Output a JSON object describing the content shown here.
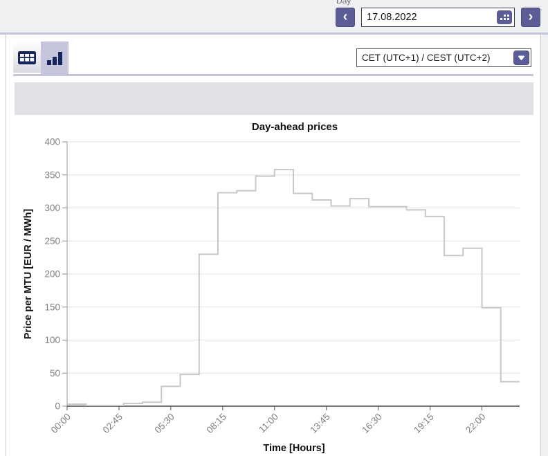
{
  "topbar": {
    "day_label": "Day",
    "date_value": "17.08.2022"
  },
  "icons": {
    "chevron_left": "‹",
    "chevron_right": "›"
  },
  "toolbar": {
    "timezone_value": "CET (UTC+1) / CEST (UTC+2)"
  },
  "colors": {
    "accent_purple": "#5c5c97",
    "icon_navy": "#16265c",
    "selected_button_bg": "#c5c5de",
    "divider_lavender": "#c5c5dc",
    "band_gray": "#e0e0e6",
    "topbar_bg": "#eff0f2",
    "line_gray": "#c8c8c8",
    "grid_gray": "#e3e3e3",
    "tick_label_gray": "#7f7f7f",
    "x_axis_color": "#444444",
    "y_axis_color": "#9a9a9a"
  },
  "chart_data": {
    "type": "line",
    "style": "step-after-hourly",
    "title": "Day-ahead prices",
    "xlabel": "Time [Hours]",
    "ylabel": "Price per MTU [EUR / MWh]",
    "ylim": [
      0,
      400
    ],
    "ytick_step": 50,
    "x_hours_range": [
      0,
      24
    ],
    "xticks": [
      {
        "hour": 0,
        "label": "00:00"
      },
      {
        "hour": 2.75,
        "label": "02:45"
      },
      {
        "hour": 5.5,
        "label": "05:30"
      },
      {
        "hour": 8.25,
        "label": "08:15"
      },
      {
        "hour": 11,
        "label": "11:00"
      },
      {
        "hour": 13.75,
        "label": "13:45"
      },
      {
        "hour": 16.5,
        "label": "16:30"
      },
      {
        "hour": 19.25,
        "label": "19:15"
      },
      {
        "hour": 22,
        "label": "22:00"
      }
    ],
    "grid": true,
    "legend_position": "none",
    "series": [
      {
        "name": "Day-ahead price",
        "unit": "EUR/MWh",
        "hours": [
          0,
          1,
          2,
          3,
          4,
          5,
          6,
          7,
          8,
          9,
          10,
          11,
          12,
          13,
          14,
          15,
          16,
          17,
          18,
          19,
          20,
          21,
          22,
          23
        ],
        "values": [
          3,
          1,
          1,
          4,
          6,
          30,
          48,
          230,
          323,
          326,
          348,
          358,
          322,
          312,
          303,
          314,
          302,
          302,
          297,
          287,
          228,
          239,
          149,
          37
        ]
      }
    ]
  }
}
